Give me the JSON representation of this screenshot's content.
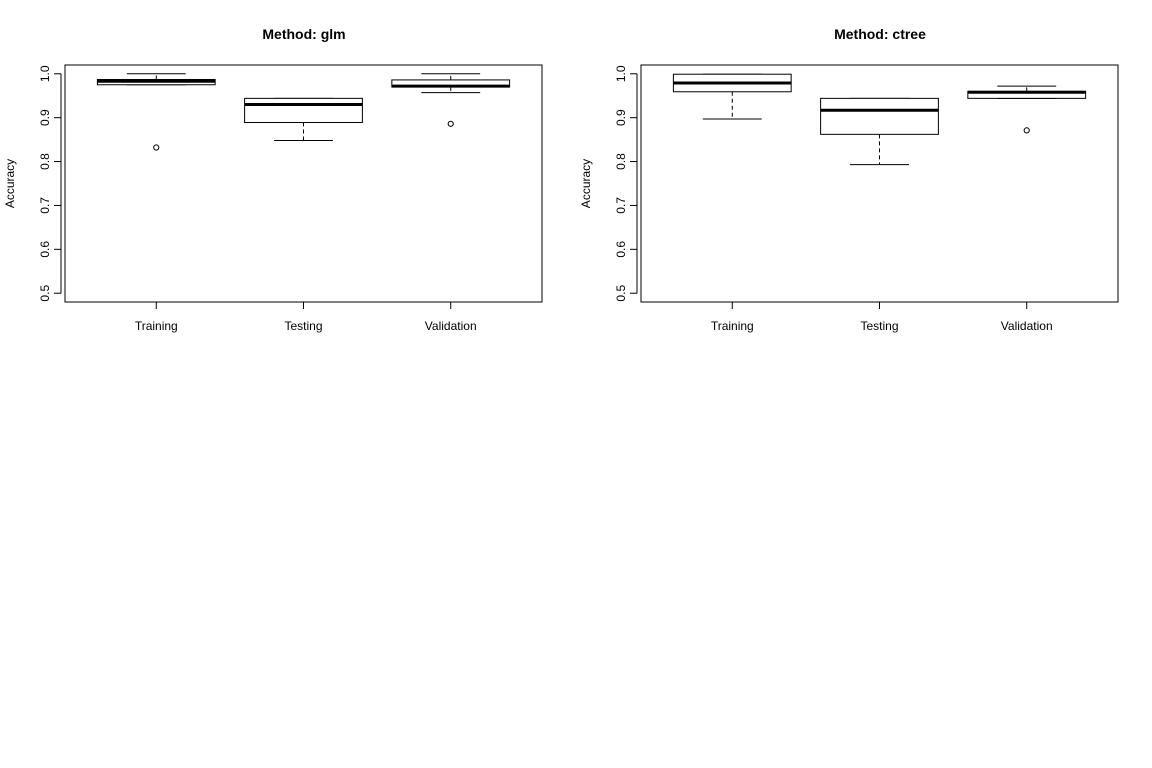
{
  "chart_data": [
    {
      "type": "boxplot",
      "title": "Method: glm",
      "xlabel": "",
      "ylabel": "Accuracy",
      "ylim": [
        0.5,
        1.0
      ],
      "yticks": [
        "0.5",
        "0.6",
        "0.7",
        "0.8",
        "0.9",
        "1.0"
      ],
      "categories": [
        "Training",
        "Testing",
        "Validation"
      ],
      "boxes": [
        {
          "whisker_low": 0.975,
          "q1": 0.975,
          "median": 0.983,
          "q3": 0.987,
          "whisker_high": 1.0,
          "outliers": [
            0.832
          ]
        },
        {
          "whisker_low": 0.848,
          "q1": 0.889,
          "median": 0.93,
          "q3": 0.944,
          "whisker_high": 0.944,
          "outliers": []
        },
        {
          "whisker_low": 0.957,
          "q1": 0.97,
          "median": 0.972,
          "q3": 0.986,
          "whisker_high": 1.0,
          "outliers": [
            0.886
          ]
        }
      ]
    },
    {
      "type": "boxplot",
      "title": "Method: ctree",
      "xlabel": "",
      "ylabel": "Accuracy",
      "ylim": [
        0.5,
        1.0
      ],
      "yticks": [
        "0.5",
        "0.6",
        "0.7",
        "0.8",
        "0.9",
        "1.0"
      ],
      "categories": [
        "Training",
        "Testing",
        "Validation"
      ],
      "boxes": [
        {
          "whisker_low": 0.897,
          "q1": 0.959,
          "median": 0.979,
          "q3": 0.999,
          "whisker_high": 0.999,
          "outliers": []
        },
        {
          "whisker_low": 0.793,
          "q1": 0.862,
          "median": 0.917,
          "q3": 0.944,
          "whisker_high": 0.944,
          "outliers": []
        },
        {
          "whisker_low": 0.944,
          "q1": 0.944,
          "median": 0.958,
          "q3": 0.96,
          "whisker_high": 0.972,
          "outliers": [
            0.871
          ]
        }
      ]
    }
  ]
}
